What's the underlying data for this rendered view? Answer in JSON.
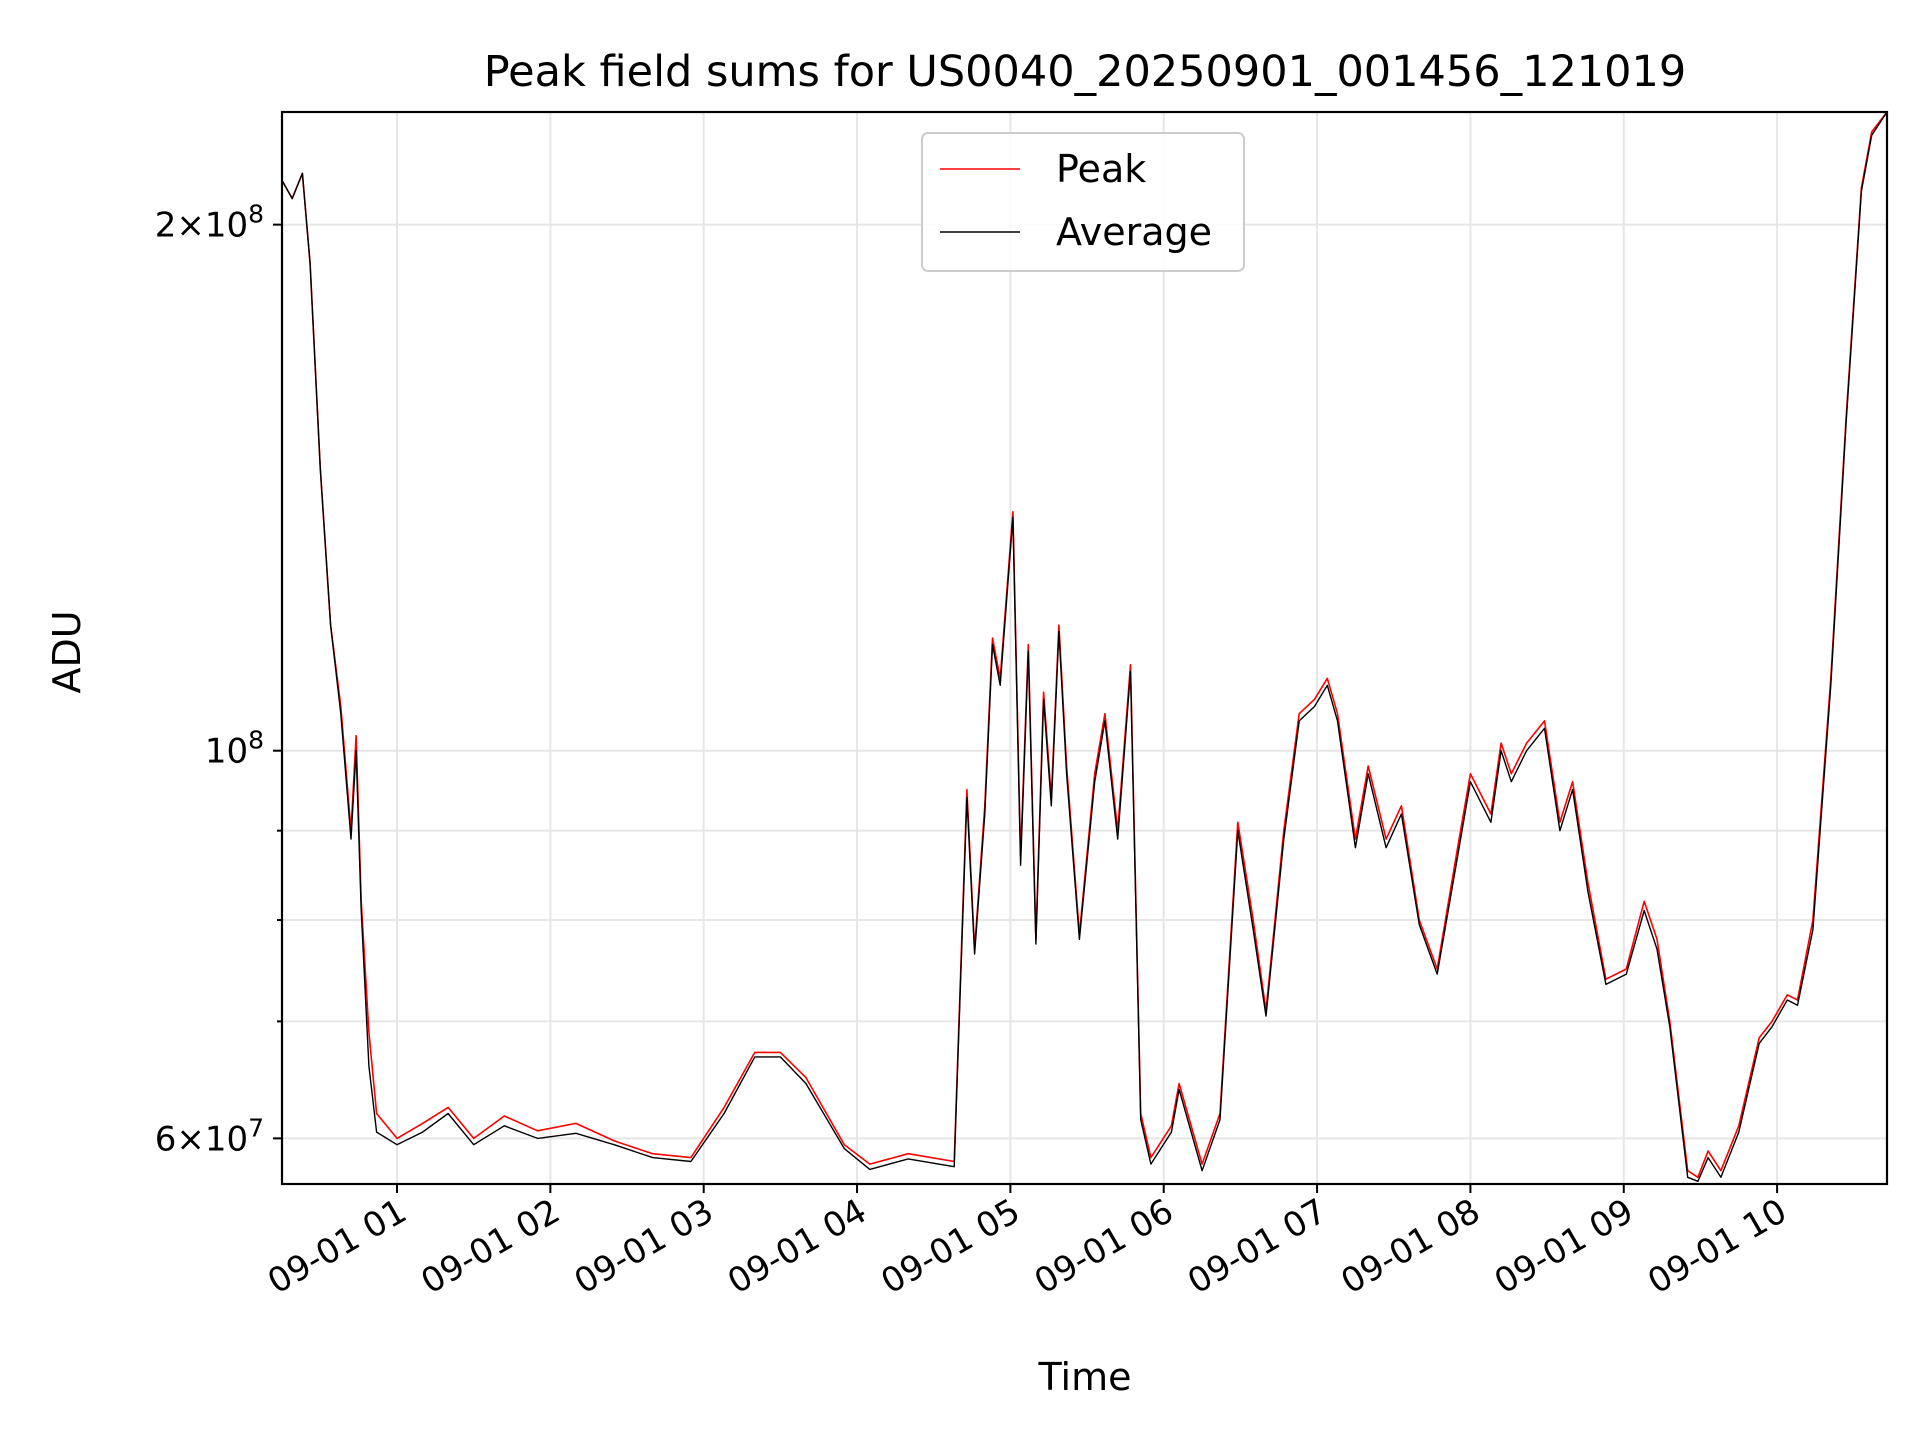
{
  "chart_data": {
    "type": "line",
    "title": "Peak field sums for US0040_20250901_001456_121019",
    "xlabel": "Time",
    "ylabel": "ADU",
    "y_scale": "log",
    "ylim": [
      56500000,
      232000000
    ],
    "xlim": [
      "2025-09-01 00:15",
      "2025-09-01 10:43"
    ],
    "grid": true,
    "legend_position": "upper center",
    "x_ticks": [
      "2025-09-01 01:00",
      "2025-09-01 02:00",
      "2025-09-01 03:00",
      "2025-09-01 04:00",
      "2025-09-01 05:00",
      "2025-09-01 06:00",
      "2025-09-01 07:00",
      "2025-09-01 08:00",
      "2025-09-01 09:00",
      "2025-09-01 10:00"
    ],
    "x_tick_labels": [
      "09-01 01",
      "09-01 02",
      "09-01 03",
      "09-01 04",
      "09-01 05",
      "09-01 06",
      "09-01 07",
      "09-01 08",
      "09-01 09",
      "09-01 10"
    ],
    "y_ticks": [
      {
        "value": 200000000,
        "mantissa": "2",
        "exponent": "8"
      },
      {
        "value": 100000000,
        "mantissa": "",
        "exponent": "8"
      },
      {
        "value": 60000000,
        "mantissa": "6",
        "exponent": "7"
      }
    ],
    "y_minor_ticks": [
      70000000,
      80000000,
      90000000
    ],
    "series": [
      {
        "name": "Peak",
        "color": "#ff0000",
        "points": [
          [
            "2025-09-01 00:15",
            212000000
          ],
          [
            "2025-09-01 00:19",
            207000000
          ],
          [
            "2025-09-01 00:23",
            214000000
          ],
          [
            "2025-09-01 00:26",
            190000000
          ],
          [
            "2025-09-01 00:30",
            145000000
          ],
          [
            "2025-09-01 00:34",
            118000000
          ],
          [
            "2025-09-01 00:38",
            106000000
          ],
          [
            "2025-09-01 00:42",
            90000000
          ],
          [
            "2025-09-01 00:44",
            102000000
          ],
          [
            "2025-09-01 00:46",
            82000000
          ],
          [
            "2025-09-01 00:49",
            69000000
          ],
          [
            "2025-09-01 00:52",
            62000000
          ],
          [
            "2025-09-01 01:00",
            60000000
          ],
          [
            "2025-09-01 01:10",
            61200000
          ],
          [
            "2025-09-01 01:20",
            62500000
          ],
          [
            "2025-09-01 01:30",
            60000000
          ],
          [
            "2025-09-01 01:42",
            61800000
          ],
          [
            "2025-09-01 01:55",
            60600000
          ],
          [
            "2025-09-01 02:10",
            61200000
          ],
          [
            "2025-09-01 02:25",
            59800000
          ],
          [
            "2025-09-01 02:40",
            58800000
          ],
          [
            "2025-09-01 02:55",
            58500000
          ],
          [
            "2025-09-01 03:08",
            62500000
          ],
          [
            "2025-09-01 03:20",
            67200000
          ],
          [
            "2025-09-01 03:30",
            67200000
          ],
          [
            "2025-09-01 03:40",
            65000000
          ],
          [
            "2025-09-01 03:55",
            59500000
          ],
          [
            "2025-09-01 04:05",
            58000000
          ],
          [
            "2025-09-01 04:20",
            58800000
          ],
          [
            "2025-09-01 04:38",
            58200000
          ],
          [
            "2025-09-01 04:43",
            95000000
          ],
          [
            "2025-09-01 04:46",
            77000000
          ],
          [
            "2025-09-01 04:50",
            93000000
          ],
          [
            "2025-09-01 04:53",
            116000000
          ],
          [
            "2025-09-01 04:56",
            110000000
          ],
          [
            "2025-09-01 05:01",
            137000000
          ],
          [
            "2025-09-01 05:04",
            87000000
          ],
          [
            "2025-09-01 05:07",
            115000000
          ],
          [
            "2025-09-01 05:10",
            78000000
          ],
          [
            "2025-09-01 05:13",
            108000000
          ],
          [
            "2025-09-01 05:16",
            94000000
          ],
          [
            "2025-09-01 05:19",
            118000000
          ],
          [
            "2025-09-01 05:22",
            98000000
          ],
          [
            "2025-09-01 05:27",
            78500000
          ],
          [
            "2025-09-01 05:33",
            97000000
          ],
          [
            "2025-09-01 05:37",
            105000000
          ],
          [
            "2025-09-01 05:42",
            90000000
          ],
          [
            "2025-09-01 05:47",
            112000000
          ],
          [
            "2025-09-01 05:51",
            62000000
          ],
          [
            "2025-09-01 05:55",
            58500000
          ],
          [
            "2025-09-01 06:03",
            61000000
          ],
          [
            "2025-09-01 06:06",
            64500000
          ],
          [
            "2025-09-01 06:15",
            58000000
          ],
          [
            "2025-09-01 06:22",
            62000000
          ],
          [
            "2025-09-01 06:29",
            91000000
          ],
          [
            "2025-09-01 06:35",
            80000000
          ],
          [
            "2025-09-01 06:40",
            71000000
          ],
          [
            "2025-09-01 06:47",
            90000000
          ],
          [
            "2025-09-01 06:53",
            105000000
          ],
          [
            "2025-09-01 06:59",
            107000000
          ],
          [
            "2025-09-01 07:04",
            110000000
          ],
          [
            "2025-09-01 07:08",
            105000000
          ],
          [
            "2025-09-01 07:15",
            89000000
          ],
          [
            "2025-09-01 07:20",
            98000000
          ],
          [
            "2025-09-01 07:27",
            89000000
          ],
          [
            "2025-09-01 07:33",
            93000000
          ],
          [
            "2025-09-01 07:40",
            80000000
          ],
          [
            "2025-09-01 07:47",
            75000000
          ],
          [
            "2025-09-01 07:55",
            88000000
          ],
          [
            "2025-09-01 08:00",
            97000000
          ],
          [
            "2025-09-01 08:08",
            92000000
          ],
          [
            "2025-09-01 08:12",
            101000000
          ],
          [
            "2025-09-01 08:16",
            97000000
          ],
          [
            "2025-09-01 08:22",
            101000000
          ],
          [
            "2025-09-01 08:29",
            104000000
          ],
          [
            "2025-09-01 08:35",
            91000000
          ],
          [
            "2025-09-01 08:40",
            96000000
          ],
          [
            "2025-09-01 08:46",
            84000000
          ],
          [
            "2025-09-01 08:53",
            74000000
          ],
          [
            "2025-09-01 09:01",
            75000000
          ],
          [
            "2025-09-01 09:08",
            82000000
          ],
          [
            "2025-09-01 09:13",
            78000000
          ],
          [
            "2025-09-01 09:18",
            70000000
          ],
          [
            "2025-09-01 09:25",
            57500000
          ],
          [
            "2025-09-01 09:29",
            57000000
          ],
          [
            "2025-09-01 09:33",
            59000000
          ],
          [
            "2025-09-01 09:38",
            57500000
          ],
          [
            "2025-09-01 09:45",
            61000000
          ],
          [
            "2025-09-01 09:53",
            68500000
          ],
          [
            "2025-09-01 09:58",
            70000000
          ],
          [
            "2025-09-01 10:04",
            72500000
          ],
          [
            "2025-09-01 10:08",
            72000000
          ],
          [
            "2025-09-01 10:14",
            80000000
          ],
          [
            "2025-09-01 10:21",
            110000000
          ],
          [
            "2025-09-01 10:27",
            155000000
          ],
          [
            "2025-09-01 10:33",
            210000000
          ],
          [
            "2025-09-01 10:37",
            226000000
          ],
          [
            "2025-09-01 10:43",
            232000000
          ]
        ]
      },
      {
        "name": "Average",
        "color": "#000000",
        "points": [
          [
            "2025-09-01 00:15",
            212000000
          ],
          [
            "2025-09-01 00:19",
            207000000
          ],
          [
            "2025-09-01 00:23",
            214000000
          ],
          [
            "2025-09-01 00:26",
            190000000
          ],
          [
            "2025-09-01 00:30",
            145000000
          ],
          [
            "2025-09-01 00:34",
            118000000
          ],
          [
            "2025-09-01 00:38",
            105000000
          ],
          [
            "2025-09-01 00:42",
            89000000
          ],
          [
            "2025-09-01 00:44",
            100000000
          ],
          [
            "2025-09-01 00:46",
            81000000
          ],
          [
            "2025-09-01 00:49",
            66000000
          ],
          [
            "2025-09-01 00:52",
            60500000
          ],
          [
            "2025-09-01 01:00",
            59500000
          ],
          [
            "2025-09-01 01:10",
            60500000
          ],
          [
            "2025-09-01 01:20",
            62000000
          ],
          [
            "2025-09-01 01:30",
            59500000
          ],
          [
            "2025-09-01 01:42",
            61000000
          ],
          [
            "2025-09-01 01:55",
            60000000
          ],
          [
            "2025-09-01 02:10",
            60400000
          ],
          [
            "2025-09-01 02:25",
            59500000
          ],
          [
            "2025-09-01 02:40",
            58500000
          ],
          [
            "2025-09-01 02:55",
            58200000
          ],
          [
            "2025-09-01 03:08",
            62000000
          ],
          [
            "2025-09-01 03:20",
            66800000
          ],
          [
            "2025-09-01 03:30",
            66800000
          ],
          [
            "2025-09-01 03:40",
            64500000
          ],
          [
            "2025-09-01 03:55",
            59200000
          ],
          [
            "2025-09-01 04:05",
            57600000
          ],
          [
            "2025-09-01 04:20",
            58400000
          ],
          [
            "2025-09-01 04:38",
            57800000
          ],
          [
            "2025-09-01 04:43",
            94000000
          ],
          [
            "2025-09-01 04:46",
            76500000
          ],
          [
            "2025-09-01 04:50",
            92000000
          ],
          [
            "2025-09-01 04:53",
            115000000
          ],
          [
            "2025-09-01 04:56",
            109000000
          ],
          [
            "2025-09-01 05:01",
            136000000
          ],
          [
            "2025-09-01 05:04",
            86000000
          ],
          [
            "2025-09-01 05:07",
            114000000
          ],
          [
            "2025-09-01 05:10",
            77500000
          ],
          [
            "2025-09-01 05:13",
            107000000
          ],
          [
            "2025-09-01 05:16",
            93000000
          ],
          [
            "2025-09-01 05:19",
            117000000
          ],
          [
            "2025-09-01 05:22",
            97000000
          ],
          [
            "2025-09-01 05:27",
            78000000
          ],
          [
            "2025-09-01 05:33",
            96000000
          ],
          [
            "2025-09-01 05:37",
            104000000
          ],
          [
            "2025-09-01 05:42",
            89000000
          ],
          [
            "2025-09-01 05:47",
            111000000
          ],
          [
            "2025-09-01 05:51",
            61500000
          ],
          [
            "2025-09-01 05:55",
            58000000
          ],
          [
            "2025-09-01 06:03",
            60500000
          ],
          [
            "2025-09-01 06:06",
            64000000
          ],
          [
            "2025-09-01 06:15",
            57500000
          ],
          [
            "2025-09-01 06:22",
            61500000
          ],
          [
            "2025-09-01 06:29",
            90000000
          ],
          [
            "2025-09-01 06:35",
            79000000
          ],
          [
            "2025-09-01 06:40",
            70500000
          ],
          [
            "2025-09-01 06:47",
            89000000
          ],
          [
            "2025-09-01 06:53",
            104000000
          ],
          [
            "2025-09-01 06:59",
            106000000
          ],
          [
            "2025-09-01 07:04",
            109000000
          ],
          [
            "2025-09-01 07:08",
            104000000
          ],
          [
            "2025-09-01 07:15",
            88000000
          ],
          [
            "2025-09-01 07:20",
            97000000
          ],
          [
            "2025-09-01 07:27",
            88000000
          ],
          [
            "2025-09-01 07:33",
            92000000
          ],
          [
            "2025-09-01 07:40",
            79500000
          ],
          [
            "2025-09-01 07:47",
            74500000
          ],
          [
            "2025-09-01 07:55",
            87000000
          ],
          [
            "2025-09-01 08:00",
            96000000
          ],
          [
            "2025-09-01 08:08",
            91000000
          ],
          [
            "2025-09-01 08:12",
            100000000
          ],
          [
            "2025-09-01 08:16",
            96000000
          ],
          [
            "2025-09-01 08:22",
            100000000
          ],
          [
            "2025-09-01 08:29",
            103000000
          ],
          [
            "2025-09-01 08:35",
            90000000
          ],
          [
            "2025-09-01 08:40",
            95000000
          ],
          [
            "2025-09-01 08:46",
            83000000
          ],
          [
            "2025-09-01 08:53",
            73500000
          ],
          [
            "2025-09-01 09:01",
            74500000
          ],
          [
            "2025-09-01 09:08",
            81000000
          ],
          [
            "2025-09-01 09:13",
            77000000
          ],
          [
            "2025-09-01 09:18",
            69500000
          ],
          [
            "2025-09-01 09:25",
            57000000
          ],
          [
            "2025-09-01 09:29",
            56700000
          ],
          [
            "2025-09-01 09:33",
            58500000
          ],
          [
            "2025-09-01 09:38",
            57000000
          ],
          [
            "2025-09-01 09:45",
            60500000
          ],
          [
            "2025-09-01 09:53",
            68000000
          ],
          [
            "2025-09-01 09:58",
            69500000
          ],
          [
            "2025-09-01 10:04",
            72000000
          ],
          [
            "2025-09-01 10:08",
            71500000
          ],
          [
            "2025-09-01 10:14",
            79000000
          ],
          [
            "2025-09-01 10:21",
            109000000
          ],
          [
            "2025-09-01 10:27",
            154000000
          ],
          [
            "2025-09-01 10:33",
            209000000
          ],
          [
            "2025-09-01 10:37",
            225000000
          ],
          [
            "2025-09-01 10:43",
            232000000
          ]
        ]
      }
    ]
  }
}
